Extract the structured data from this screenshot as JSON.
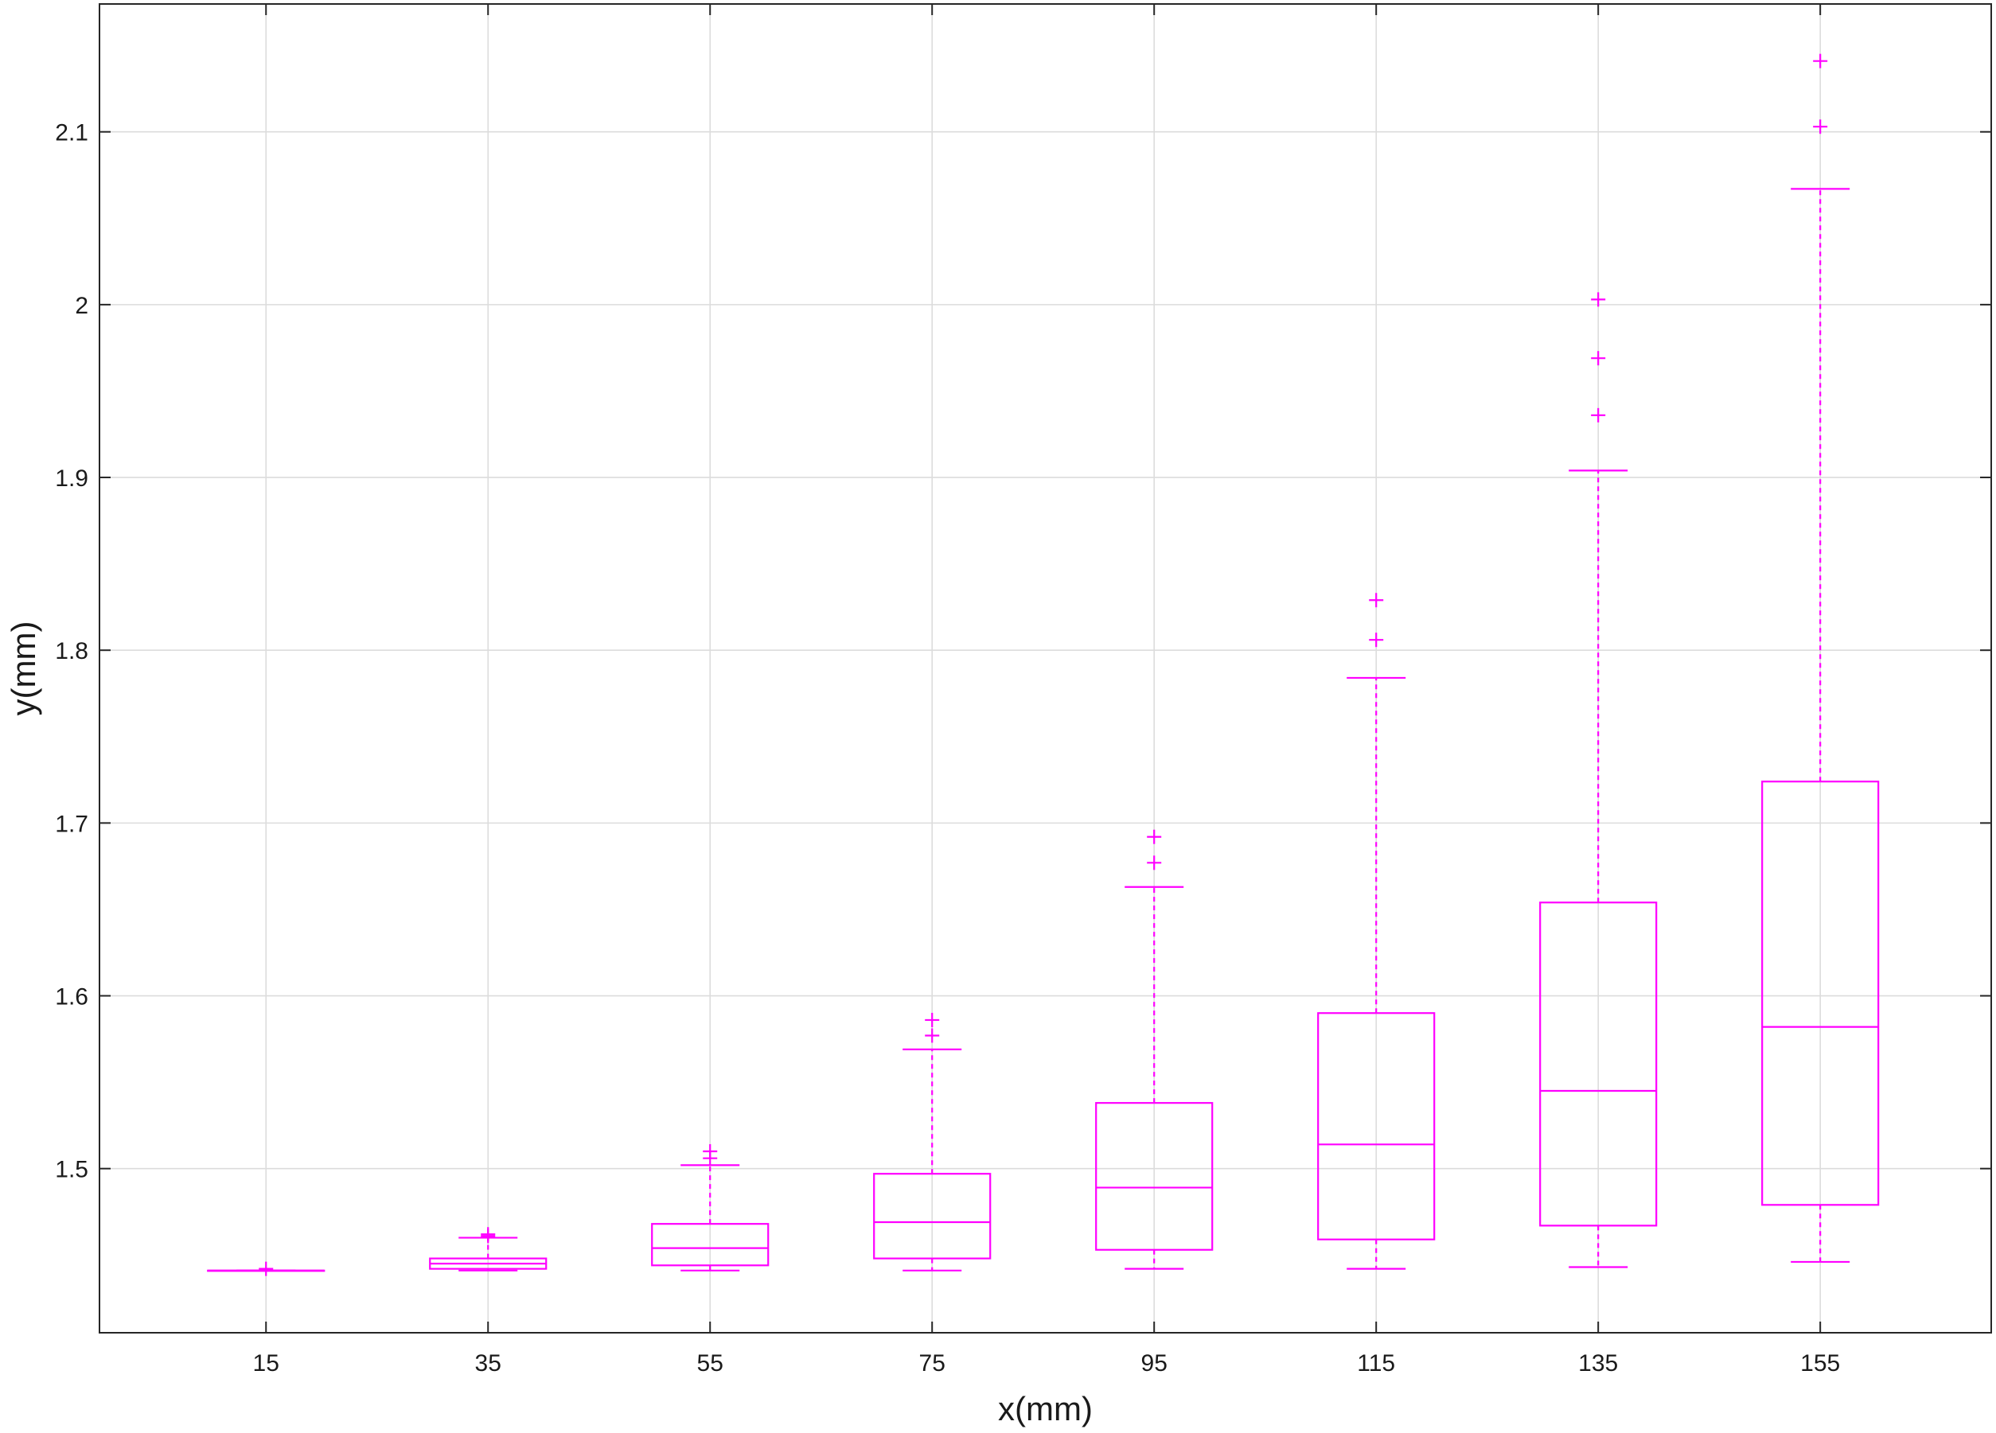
{
  "chart_data": {
    "type": "boxplot",
    "xlabel": "x(mm)",
    "ylabel": "y(mm)",
    "categories": [
      "15",
      "35",
      "55",
      "75",
      "95",
      "115",
      "135",
      "155"
    ],
    "yticks": [
      "1.5",
      "1.6",
      "1.7",
      "1.8",
      "1.9",
      "2",
      "2.1"
    ],
    "ylim": [
      1.405,
      2.174
    ],
    "grid": true,
    "color": "#ff00ff",
    "boxes": [
      {
        "x": "15",
        "whisker_low": 1.441,
        "q1": 1.441,
        "median": 1.441,
        "q3": 1.441,
        "whisker_high": 1.441,
        "outliers": [
          1.442
        ]
      },
      {
        "x": "35",
        "whisker_low": 1.441,
        "q1": 1.442,
        "median": 1.445,
        "q3": 1.448,
        "whisker_high": 1.46,
        "outliers": [
          1.461,
          1.462
        ]
      },
      {
        "x": "55",
        "whisker_low": 1.441,
        "q1": 1.444,
        "median": 1.454,
        "q3": 1.468,
        "whisker_high": 1.502,
        "outliers": [
          1.506,
          1.51
        ]
      },
      {
        "x": "75",
        "whisker_low": 1.441,
        "q1": 1.448,
        "median": 1.469,
        "q3": 1.497,
        "whisker_high": 1.569,
        "outliers": [
          1.577,
          1.586
        ]
      },
      {
        "x": "95",
        "whisker_low": 1.442,
        "q1": 1.453,
        "median": 1.489,
        "q3": 1.538,
        "whisker_high": 1.663,
        "outliers": [
          1.677,
          1.692
        ]
      },
      {
        "x": "115",
        "whisker_low": 1.442,
        "q1": 1.459,
        "median": 1.514,
        "q3": 1.59,
        "whisker_high": 1.784,
        "outliers": [
          1.806,
          1.829
        ]
      },
      {
        "x": "135",
        "whisker_low": 1.443,
        "q1": 1.467,
        "median": 1.545,
        "q3": 1.654,
        "whisker_high": 1.904,
        "outliers": [
          1.936,
          1.969,
          2.003
        ]
      },
      {
        "x": "155",
        "whisker_low": 1.446,
        "q1": 1.479,
        "median": 1.582,
        "q3": 1.724,
        "whisker_high": 2.067,
        "outliers": [
          2.103,
          2.141
        ]
      }
    ]
  }
}
